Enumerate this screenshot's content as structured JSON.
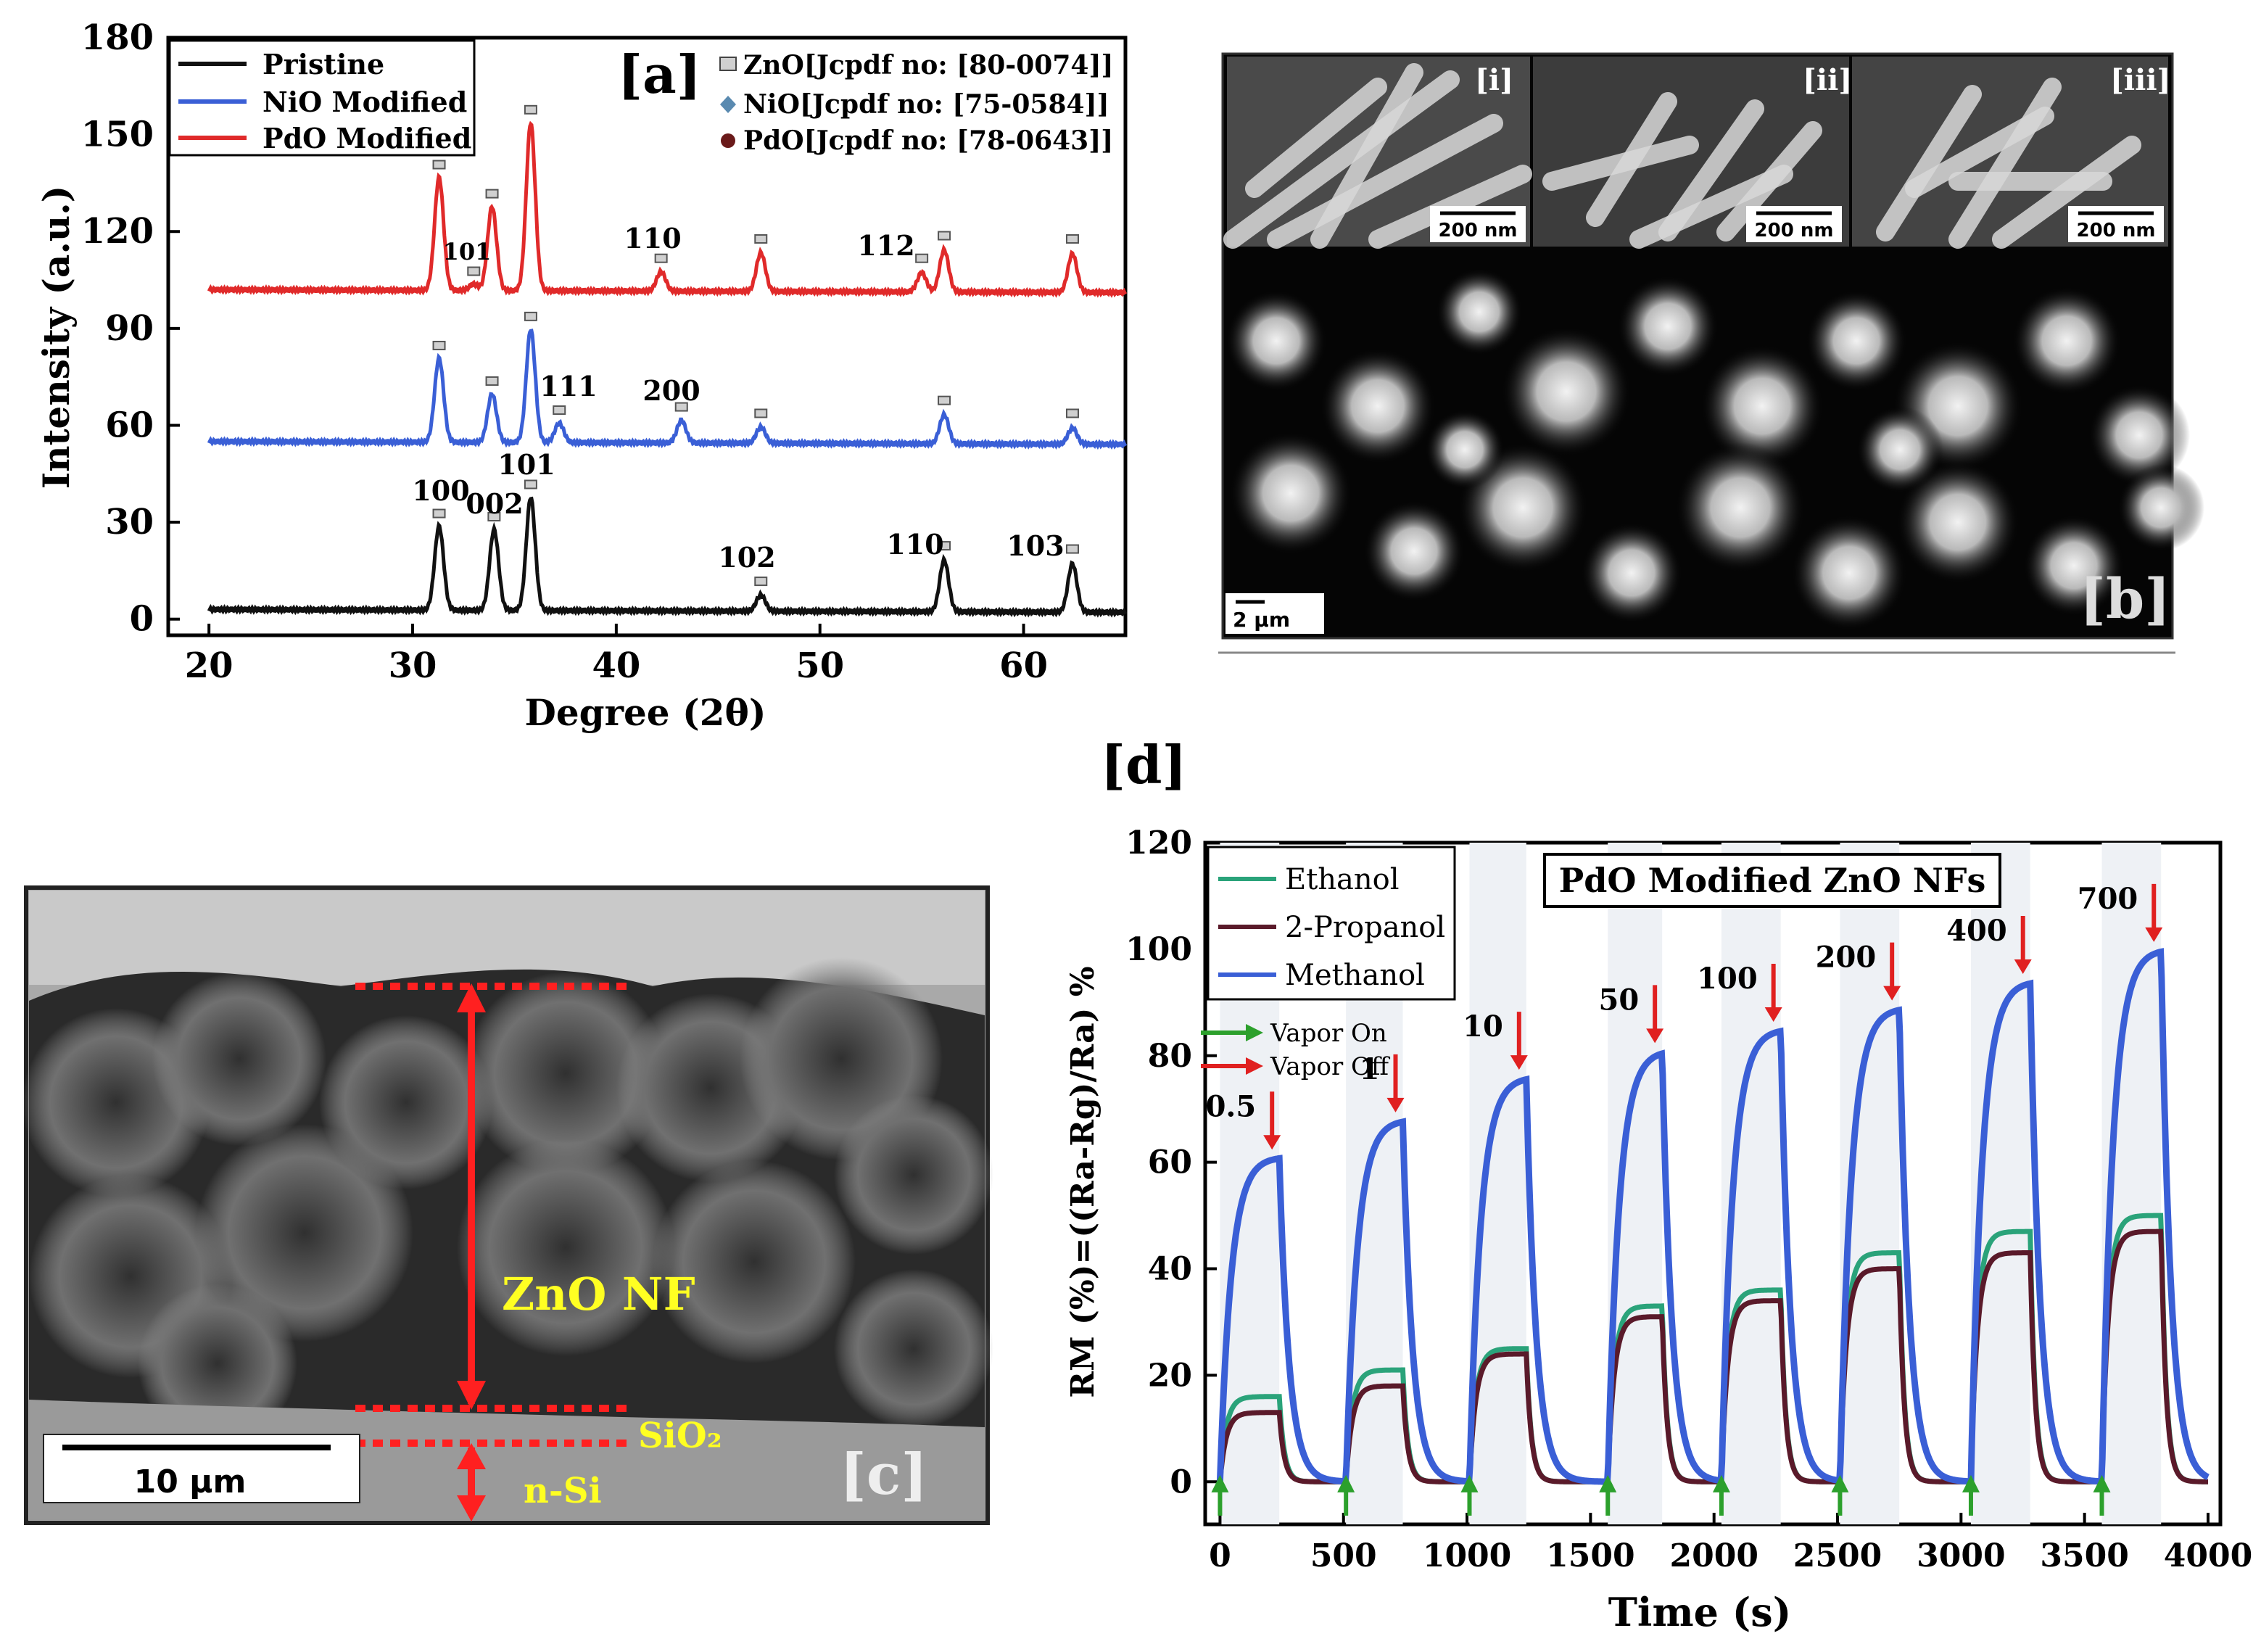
{
  "figure": {
    "panel_a": {
      "tag": "[a]",
      "xlabel": "Degree (2θ)",
      "ylabel": "Intensity (a.u.)",
      "legend": [
        "Pristine",
        "NiO Modified",
        "PdO Modified"
      ],
      "ref_legend": [
        "ZnO[Jcpdf no: [80-0074]]",
        "NiO[Jcpdf no: [75-0584]]",
        "PdO[Jcpdf no: [78-0643]]"
      ],
      "peak_labels_pristine": [
        "100",
        "002",
        "101",
        "102",
        "110",
        "103"
      ],
      "peak_labels_nio": [
        "111",
        "200"
      ],
      "peak_labels_pdo": [
        "101",
        "110",
        "112"
      ]
    },
    "panel_b": {
      "tag": "[b]",
      "insets": [
        "[i]",
        "[ii]",
        "[iii]"
      ],
      "inset_scale": "200 nm",
      "scale": "2 µm"
    },
    "panel_c": {
      "tag": "[c]",
      "labels": [
        "ZnO NF",
        "SiO₂",
        "n-Si"
      ],
      "scale": "10 µm"
    },
    "panel_d": {
      "tag": "[d]",
      "title": "PdO Modified ZnO NFs",
      "xlabel": "Time (s)",
      "ylabel": "RM (%)=((Ra-Rg)/Ra) %",
      "legend": [
        "Ethanol",
        "2-Propanol",
        "Methanol"
      ],
      "arrow_legend": [
        "Vapor On",
        "Vapor Off"
      ],
      "conc_labels": [
        "0.5",
        "1",
        "10",
        "50",
        "100",
        "200",
        "400",
        "700"
      ]
    },
    "colors": {
      "pristine": "#111111",
      "nio": "#3a5fd6",
      "pdo": "#e02a2a",
      "ethanol": "#2aa37a",
      "propanol": "#5a1a2a",
      "methanol": "#3a5fd6",
      "arrow_on": "#2ca02c",
      "arrow_off": "#e02020"
    }
  },
  "chart_data": [
    {
      "type": "line",
      "title": "",
      "xlabel": "Degree (2θ)",
      "ylabel": "Intensity (a.u.)",
      "xlim": [
        18,
        65
      ],
      "ylim": [
        -5,
        180
      ],
      "xticks": [
        20,
        30,
        40,
        50,
        60
      ],
      "yticks": [
        0,
        30,
        60,
        90,
        120,
        150,
        180
      ],
      "series": [
        {
          "name": "Pristine",
          "baseline": 3,
          "peaks": [
            [
              31.3,
              29
            ],
            [
              34.0,
              28
            ],
            [
              35.8,
              38
            ],
            [
              47.1,
              8
            ],
            [
              56.1,
              19
            ],
            [
              62.4,
              18
            ]
          ]
        },
        {
          "name": "NiO Modified",
          "baseline": 55,
          "peaks": [
            [
              31.3,
              81
            ],
            [
              33.9,
              70
            ],
            [
              35.8,
              90
            ],
            [
              37.2,
              61
            ],
            [
              43.2,
              62
            ],
            [
              47.1,
              60
            ],
            [
              56.1,
              64
            ],
            [
              62.4,
              60
            ]
          ]
        },
        {
          "name": "PdO Modified",
          "baseline": 102,
          "peaks": [
            [
              31.3,
              137
            ],
            [
              33.0,
              104
            ],
            [
              33.9,
              128
            ],
            [
              35.8,
              154
            ],
            [
              42.2,
              108
            ],
            [
              47.1,
              114
            ],
            [
              55.0,
              108
            ],
            [
              56.1,
              115
            ],
            [
              62.4,
              114
            ]
          ]
        }
      ]
    },
    {
      "type": "line",
      "title": "PdO Modified ZnO NFs",
      "xlabel": "Time (s)",
      "ylabel": "RM (%)=((Ra-Rg)/Ra) %",
      "xlim": [
        -60,
        4050
      ],
      "ylim": [
        -8,
        120
      ],
      "xticks": [
        0,
        500,
        1000,
        1500,
        2000,
        2500,
        3000,
        3500,
        4000
      ],
      "yticks": [
        0,
        20,
        40,
        60,
        80,
        100,
        120
      ],
      "vapor_on": [
        0,
        510,
        1010,
        1570,
        2030,
        2510,
        3040,
        3570
      ],
      "vapor_off": [
        240,
        740,
        1240,
        1790,
        2270,
        2750,
        3280,
        3810
      ],
      "series": [
        {
          "name": "Ethanol",
          "plateaus": [
            16,
            21,
            25,
            33,
            36,
            43,
            47,
            50
          ]
        },
        {
          "name": "2-Propanol",
          "plateaus": [
            13,
            18,
            24,
            31,
            34,
            40,
            43,
            47
          ]
        },
        {
          "name": "Methanol",
          "plateaus": [
            61,
            68,
            76,
            81,
            85,
            89,
            94,
            100
          ]
        }
      ]
    }
  ]
}
